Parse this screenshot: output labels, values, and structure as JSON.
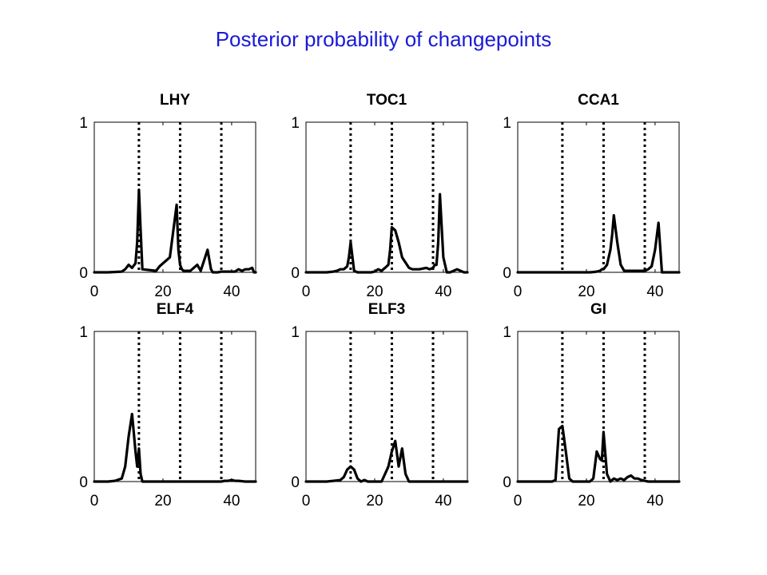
{
  "title": "Posterior probability of changepoints",
  "colors": {
    "title": "#1a1ad6",
    "line": "#000000",
    "axes": "#000000",
    "background": "#ffffff"
  },
  "chart_data": [
    {
      "type": "line",
      "title": "LHY",
      "xlim": [
        0,
        47
      ],
      "ylim": [
        0,
        1
      ],
      "xticks": [
        0,
        20,
        40
      ],
      "yticks": [
        0,
        1
      ],
      "changepoints": [
        13,
        25,
        37
      ],
      "x": [
        0,
        4,
        8,
        9,
        10,
        11,
        12,
        12.5,
        13,
        13.5,
        14,
        18,
        19,
        20,
        21,
        22,
        24,
        24.5,
        25,
        25.5,
        26,
        28,
        30,
        31,
        32,
        33,
        34,
        34.5,
        35,
        36,
        37,
        41,
        42,
        43,
        44,
        45,
        46,
        46.5,
        47
      ],
      "values": [
        0,
        0,
        0.005,
        0.02,
        0.05,
        0.03,
        0.06,
        0.2,
        0.55,
        0.28,
        0.02,
        0.01,
        0.04,
        0.06,
        0.08,
        0.1,
        0.45,
        0.15,
        0.05,
        0.02,
        0.01,
        0.01,
        0.05,
        0.01,
        0.08,
        0.15,
        0.02,
        0,
        0,
        0,
        0.005,
        0.005,
        0.02,
        0.01,
        0.02,
        0.02,
        0.03,
        0,
        0
      ]
    },
    {
      "type": "line",
      "title": "TOC1",
      "xlim": [
        0,
        47
      ],
      "ylim": [
        0,
        1
      ],
      "xticks": [
        0,
        20,
        40
      ],
      "yticks": [
        0,
        1
      ],
      "changepoints": [
        13,
        25,
        37
      ],
      "x": [
        0,
        6,
        8,
        9,
        10,
        11,
        12,
        12.5,
        13,
        14,
        15,
        19,
        20,
        21,
        22,
        23,
        24,
        24.5,
        25,
        26,
        27,
        28,
        30,
        31,
        32,
        33,
        35,
        36,
        37,
        37.5,
        38,
        38.5,
        39,
        40,
        41,
        42,
        44,
        46,
        47
      ],
      "values": [
        0,
        0,
        0.005,
        0.01,
        0.02,
        0.02,
        0.04,
        0.1,
        0.2,
        0.01,
        0,
        0,
        0.005,
        0.02,
        0.01,
        0.03,
        0.05,
        0.15,
        0.3,
        0.28,
        0.2,
        0.1,
        0.03,
        0.02,
        0.02,
        0.02,
        0.03,
        0.02,
        0.03,
        0.05,
        0.05,
        0.2,
        0.52,
        0.1,
        0,
        0,
        0.02,
        0,
        0
      ]
    },
    {
      "type": "line",
      "title": "CCA1",
      "xlim": [
        0,
        47
      ],
      "ylim": [
        0,
        1
      ],
      "xticks": [
        0,
        20,
        40
      ],
      "yticks": [
        0,
        1
      ],
      "changepoints": [
        13,
        25,
        37
      ],
      "x": [
        0,
        21,
        22,
        23,
        24,
        24.5,
        25,
        26,
        27,
        27.5,
        28,
        29,
        30,
        31,
        35,
        37,
        38,
        39,
        40,
        41,
        42,
        44,
        46,
        47
      ],
      "values": [
        0,
        0,
        0.002,
        0.005,
        0.01,
        0.02,
        0.02,
        0.05,
        0.15,
        0.25,
        0.38,
        0.2,
        0.05,
        0.01,
        0.01,
        0.01,
        0.02,
        0.04,
        0.15,
        0.33,
        0,
        0,
        0,
        0
      ]
    },
    {
      "type": "line",
      "title": "ELF4",
      "xlim": [
        0,
        47
      ],
      "ylim": [
        0,
        1
      ],
      "xticks": [
        0,
        20,
        40
      ],
      "yticks": [
        0,
        1
      ],
      "changepoints": [
        13,
        25,
        37
      ],
      "x": [
        0,
        4,
        6,
        8,
        9,
        10,
        11,
        12,
        12.5,
        13,
        13.5,
        14,
        16,
        37,
        38,
        39,
        40,
        41,
        42,
        44,
        46,
        47
      ],
      "values": [
        0,
        0,
        0.005,
        0.02,
        0.1,
        0.3,
        0.45,
        0.2,
        0.1,
        0.22,
        0.05,
        0,
        0,
        0,
        0.005,
        0.005,
        0.01,
        0.005,
        0.005,
        0,
        0,
        0
      ]
    },
    {
      "type": "line",
      "title": "ELF3",
      "xlim": [
        0,
        47
      ],
      "ylim": [
        0,
        1
      ],
      "xticks": [
        0,
        20,
        40
      ],
      "yticks": [
        0,
        1
      ],
      "changepoints": [
        13,
        25,
        37
      ],
      "x": [
        0,
        6,
        8,
        10,
        11,
        12,
        13,
        14,
        15,
        16,
        17,
        18,
        19,
        20,
        21,
        22,
        23,
        24,
        25,
        26,
        27,
        28,
        29,
        30,
        31,
        33,
        36,
        40,
        43,
        46,
        47
      ],
      "values": [
        0,
        0,
        0.005,
        0.01,
        0.03,
        0.08,
        0.1,
        0.08,
        0.02,
        0,
        0.01,
        0,
        0,
        0,
        0,
        0,
        0.05,
        0.1,
        0.2,
        0.27,
        0.1,
        0.22,
        0.05,
        0,
        0,
        0,
        0,
        0,
        0,
        0,
        0
      ]
    },
    {
      "type": "line",
      "title": "GI",
      "xlim": [
        0,
        47
      ],
      "ylim": [
        0,
        1
      ],
      "xticks": [
        0,
        20,
        40
      ],
      "yticks": [
        0,
        1
      ],
      "changepoints": [
        13,
        25,
        37
      ],
      "x": [
        0,
        10,
        11,
        12,
        13,
        14,
        15,
        16,
        21,
        22,
        23,
        24,
        24.5,
        25,
        26,
        27,
        28,
        29,
        30,
        31,
        32,
        33,
        34,
        35,
        36,
        37,
        38,
        42,
        47
      ],
      "values": [
        0,
        0,
        0.01,
        0.35,
        0.37,
        0.2,
        0.02,
        0,
        0,
        0.02,
        0.2,
        0.15,
        0.14,
        0.33,
        0.05,
        0,
        0.02,
        0.01,
        0.02,
        0.01,
        0.03,
        0.04,
        0.02,
        0.02,
        0.01,
        0.005,
        0,
        0,
        0
      ]
    }
  ]
}
